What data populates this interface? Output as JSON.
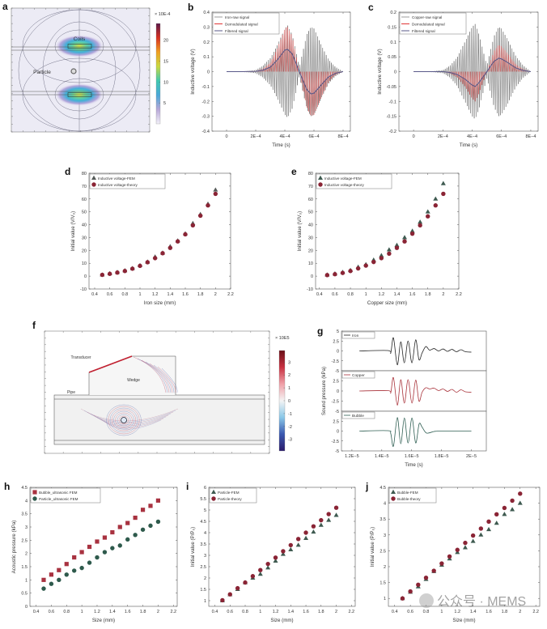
{
  "chart_data": [
    {
      "label": "a",
      "type": "heatmap",
      "colorbar": {
        "title": "× 10E-4",
        "ticks": [
          5,
          10,
          15,
          20
        ],
        "ticklabels": [
          "5",
          "10",
          "15",
          "20"
        ],
        "range": [
          0,
          24
        ],
        "colors": [
          "#f2f0f8",
          "#b8a8d8",
          "#4aa8d8",
          "#40c8b0",
          "#c8d840",
          "#f0a020",
          "#d83020",
          "#5a1848"
        ]
      },
      "annotations": [
        "Coils",
        "Particle"
      ]
    },
    {
      "label": "b",
      "type": "line",
      "xlabel": "Time (s)",
      "ylabel": "Inductive voltage (V)",
      "xlim": [
        -0.0001,
        0.00085
      ],
      "ylim": [
        -0.4,
        0.4
      ],
      "xticks": [
        0,
        0.0002,
        0.0004,
        0.0006,
        0.0008
      ],
      "xticklabels": [
        "0",
        "2E−4",
        "4E−4",
        "6E−4",
        "8E−4"
      ],
      "yticks": [
        -0.4,
        -0.3,
        -0.2,
        -0.1,
        0,
        0.1,
        0.2,
        0.3,
        0.4
      ],
      "yticklabels": [
        "-0.4",
        "-0.3",
        "-0.2",
        "-0.1",
        "0",
        "0.1",
        "0.2",
        "0.3",
        "0.4"
      ],
      "legend": [
        "Iron-raw signal",
        "Demodulated signal",
        "Filtered signal"
      ],
      "colors": {
        "raw": "#3a3a3a",
        "demodulated": "#e03535",
        "filtered": "#5a5a8a"
      },
      "t": [
        0,
        0.0001,
        0.0002,
        0.00025,
        0.0003,
        0.00035,
        0.0004,
        0.00042,
        0.00045,
        0.0005,
        0.00055,
        0.00058,
        0.0006,
        0.00065,
        0.0007,
        0.00075,
        0.0008
      ],
      "raw_envelope": [
        0,
        0,
        0.01,
        0.04,
        0.09,
        0.18,
        0.29,
        0.31,
        0.25,
        0.03,
        0.25,
        0.3,
        0.29,
        0.18,
        0.08,
        0.03,
        0
      ],
      "filtered": [
        0,
        0,
        0.002,
        0.01,
        0.03,
        0.08,
        0.145,
        0.15,
        0.12,
        0,
        -0.12,
        -0.15,
        -0.145,
        -0.09,
        -0.035,
        -0.01,
        0
      ]
    },
    {
      "label": "c",
      "type": "line",
      "xlabel": "Time (s)",
      "ylabel": "Inductive voltage (V)",
      "xlim": [
        -0.0001,
        0.00085
      ],
      "ylim": [
        -0.2,
        0.2
      ],
      "xticks": [
        0,
        0.0002,
        0.0004,
        0.0006,
        0.0008
      ],
      "xticklabels": [
        "0",
        "2E−4",
        "4E−4",
        "6E−4",
        "8E−4"
      ],
      "yticks": [
        -0.2,
        -0.15,
        -0.1,
        -0.05,
        0,
        0.05,
        0.1,
        0.15,
        0.2
      ],
      "yticklabels": [
        "-0.2",
        "-0.15",
        "-0.1",
        "-0.05",
        "0",
        "0.05",
        "0.1",
        "0.15",
        "0.2"
      ],
      "legend": [
        "Copper-raw signal",
        "Demodulated signal",
        "Filtered signal"
      ],
      "colors": {
        "raw": "#3a3a3a",
        "demodulated": "#e03535",
        "filtered": "#5a5a8a"
      },
      "t": [
        0,
        0.0001,
        0.0002,
        0.00025,
        0.0003,
        0.00035,
        0.0004,
        0.00042,
        0.00045,
        0.0005,
        0.00055,
        0.00058,
        0.0006,
        0.00065,
        0.0007,
        0.00075,
        0.0008
      ],
      "raw_envelope": [
        0,
        0,
        0.005,
        0.02,
        0.05,
        0.1,
        0.15,
        0.16,
        0.12,
        0.02,
        0.12,
        0.15,
        0.145,
        0.1,
        0.05,
        0.02,
        0
      ],
      "filtered": [
        0,
        0,
        0,
        -0.003,
        -0.01,
        -0.025,
        -0.045,
        -0.05,
        -0.035,
        0,
        0.035,
        0.045,
        0.043,
        0.028,
        0.012,
        0.004,
        0
      ]
    },
    {
      "label": "d",
      "type": "scatter",
      "xlabel": "Iron size (mm)",
      "ylabel": "Initial value (V/V₀)",
      "xlim": [
        0.325,
        2.2
      ],
      "ylim": [
        -10,
        80
      ],
      "xticks": [
        0.4,
        0.6,
        0.8,
        1,
        1.2,
        1.4,
        1.6,
        1.8,
        2,
        2.2
      ],
      "xticklabels": [
        "0.4",
        "0.6",
        "0.8",
        "1",
        "1.2",
        "1.4",
        "1.6",
        "1.8",
        "2",
        "2.2"
      ],
      "yticks": [
        -10,
        0,
        10,
        20,
        30,
        40,
        50,
        60,
        70,
        80
      ],
      "yticklabels": [
        "-10",
        "0",
        "10",
        "20",
        "30",
        "40",
        "50",
        "60",
        "70",
        "80"
      ],
      "x": [
        0.5,
        0.6,
        0.7,
        0.8,
        0.9,
        1.0,
        1.1,
        1.2,
        1.3,
        1.4,
        1.5,
        1.6,
        1.7,
        1.8,
        1.9,
        2.0
      ],
      "series": [
        {
          "name": "Inductive voltage-FEM",
          "marker": "triangle",
          "color": "#555a58",
          "values": [
            1,
            2,
            3,
            4.3,
            6,
            8.3,
            11,
            15,
            18,
            23,
            27.5,
            33,
            41,
            48,
            56,
            67
          ]
        },
        {
          "name": "Inductive voltage-theory",
          "marker": "circle",
          "color": "#8a2435",
          "values": [
            1,
            1.8,
            2.8,
            4,
            5.8,
            8,
            10.8,
            14,
            17.8,
            22,
            27,
            32.5,
            39.5,
            47,
            55,
            64
          ]
        }
      ],
      "legend_position": "top-left"
    },
    {
      "label": "e",
      "type": "scatter",
      "xlabel": "Copper size (mm)",
      "ylabel": "Initial value (V/V₀)",
      "xlim": [
        0.35,
        2.2
      ],
      "ylim": [
        -10,
        80
      ],
      "xticks": [
        0.4,
        0.6,
        0.8,
        1,
        1.2,
        1.4,
        1.6,
        1.8,
        2,
        2.2
      ],
      "xticklabels": [
        "0.4",
        "0.6",
        "0.8",
        "1",
        "1.2",
        "1.4",
        "1.6",
        "1.8",
        "2",
        "2.2"
      ],
      "yticks": [
        -10,
        0,
        10,
        20,
        30,
        40,
        50,
        60,
        70,
        80
      ],
      "yticklabels": [
        "-10",
        "0",
        "10",
        "20",
        "30",
        "40",
        "50",
        "60",
        "70",
        "80"
      ],
      "x": [
        0.5,
        0.6,
        0.7,
        0.8,
        0.9,
        1.0,
        1.1,
        1.2,
        1.3,
        1.4,
        1.5,
        1.6,
        1.7,
        1.8,
        1.9,
        2.0
      ],
      "series": [
        {
          "name": "Inductive voltage-FEM",
          "marker": "triangle",
          "color": "#3e5a50",
          "values": [
            1,
            1.8,
            3,
            4.5,
            7,
            9,
            12.5,
            16,
            20.5,
            24,
            30,
            35,
            42,
            50,
            60,
            72
          ]
        },
        {
          "name": "Inductive voltage-theory",
          "marker": "circle",
          "color": "#8a2435",
          "values": [
            0.8,
            1.5,
            2.5,
            4,
            6,
            8.2,
            11,
            14,
            17.5,
            22,
            27,
            33,
            39.5,
            46.5,
            55,
            64
          ]
        }
      ],
      "legend_position": "top-left"
    },
    {
      "label": "f",
      "type": "heatmap",
      "colorbar": {
        "title": "× 10E5",
        "ticks": [
          3,
          2,
          1,
          0,
          -1,
          -2,
          -3
        ],
        "ticklabels": [
          "3",
          "2",
          "1",
          "0",
          "-1",
          "-2",
          "-3"
        ],
        "range": [
          -3.9,
          3.9
        ],
        "colors": [
          "#2a1a6a",
          "#3a58b0",
          "#8ac8e8",
          "#f4f4f4",
          "#f0a0a8",
          "#c83040",
          "#6a1018"
        ]
      },
      "annotations": [
        "Transducer",
        "Wedge",
        "Pipe"
      ]
    },
    {
      "label": "g",
      "type": "line",
      "xlabel": "Time (s)",
      "ylabel": "Sound pressure (kPa)",
      "xlim": [
        1.13e-05,
        2.1e-05
      ],
      "ylim": [
        -5,
        5
      ],
      "xticks": [
        1.2e-05,
        1.4e-05,
        1.6e-05,
        1.8e-05,
        2e-05
      ],
      "xticklabels": [
        "1.2E−5",
        "1.4E−5",
        "1.6E−5",
        "1.8E−5",
        "2E−5"
      ],
      "yticklabels_top": [
        "5",
        "2.5",
        "0",
        "-2.5",
        "-5"
      ],
      "yticklabels_lower": [
        "2.5",
        "0",
        "-2.5",
        "-5"
      ],
      "yticks_top": [
        5,
        2.5,
        0,
        -2.5,
        -5
      ],
      "yticks_lower": [
        2.5,
        0,
        -2.5,
        -5
      ],
      "series": [
        {
          "name": "Iron",
          "color": "#222222",
          "x": [
            1.25e-05,
            1.44e-05,
            1.46e-05,
            1.478e-05,
            1.504e-05,
            1.527e-05,
            1.551e-05,
            1.576e-05,
            1.602e-05,
            1.627e-05,
            1.649e-05,
            1.67e-05,
            1.695e-05,
            1.72e-05,
            1.75e-05,
            1.78e-05,
            1.81e-05,
            1.84e-05,
            1.87e-05,
            1.9e-05,
            1.93e-05,
            1.96e-05,
            2e-05
          ],
          "y": [
            0,
            0.1,
            -0.5,
            3.3,
            -3.5,
            2.3,
            -3,
            2.5,
            -3,
            2.8,
            -2.2,
            -0.5,
            1.1,
            0.2,
            0.6,
            0,
            0.5,
            -0.1,
            0.4,
            -0.2,
            0.3,
            -0.2,
            -0.3
          ]
        },
        {
          "name": "Copper",
          "color": "#a83038",
          "x": [
            1.25e-05,
            1.44e-05,
            1.46e-05,
            1.478e-05,
            1.504e-05,
            1.527e-05,
            1.551e-05,
            1.576e-05,
            1.602e-05,
            1.627e-05,
            1.649e-05,
            1.67e-05,
            1.695e-05,
            1.72e-05,
            1.75e-05,
            1.78e-05,
            1.81e-05,
            1.84e-05,
            1.87e-05,
            1.9e-05,
            1.93e-05,
            1.96e-05,
            2e-05
          ],
          "y": [
            0,
            0.1,
            -0.4,
            3.3,
            -3.5,
            2.8,
            -3,
            2.8,
            -3,
            2.7,
            -2.5,
            -0.3,
            0.8,
            0.5,
            0.7,
            0.1,
            0.5,
            -0.1,
            0.4,
            -0.3,
            0.3,
            -0.2,
            -0.3
          ]
        },
        {
          "name": "Bubble",
          "color": "#2e5e52",
          "x": [
            1.25e-05,
            1.44e-05,
            1.46e-05,
            1.478e-05,
            1.504e-05,
            1.527e-05,
            1.551e-05,
            1.576e-05,
            1.602e-05,
            1.627e-05,
            1.65e-05,
            1.67e-05,
            1.7e-05,
            1.75e-05,
            1.8e-05,
            2e-05
          ],
          "y": [
            0,
            0.1,
            -0.6,
            -3.8,
            3.4,
            -3.2,
            3.3,
            -3.0,
            3.3,
            -3.0,
            1.8,
            1.0,
            -0.5,
            -0.1,
            0,
            0
          ]
        }
      ]
    },
    {
      "label": "h",
      "type": "scatter",
      "xlabel": "Size (mm)",
      "ylabel": "Acoustic pressure (kPa)",
      "xlim": [
        0.32,
        2.25
      ],
      "ylim": [
        0,
        4.5
      ],
      "xticks": [
        0.4,
        0.6,
        0.8,
        1,
        1.2,
        1.4,
        1.6,
        1.8,
        2,
        2.2
      ],
      "xticklabels": [
        "0.4",
        "0.6",
        "0.8",
        "1",
        "1.2",
        "1.4",
        "1.6",
        "1.8",
        "2",
        "2.2"
      ],
      "yticks": [
        0,
        0.5,
        1,
        1.5,
        2,
        2.5,
        3,
        3.5,
        4,
        4.5
      ],
      "yticklabels": [
        "0",
        "0.5",
        "1",
        "1.5",
        "2",
        "2.5",
        "3",
        "3.5",
        "4",
        "4.5"
      ],
      "x": [
        0.5,
        0.6,
        0.7,
        0.8,
        0.9,
        1.0,
        1.1,
        1.2,
        1.3,
        1.4,
        1.5,
        1.6,
        1.7,
        1.8,
        1.9,
        2.0
      ],
      "series": [
        {
          "name": "Bubble_ultrasonic FEM",
          "marker": "square",
          "color": "#a83240",
          "values": [
            1.0,
            1.2,
            1.37,
            1.6,
            1.85,
            2.05,
            2.25,
            2.45,
            2.6,
            2.8,
            3.0,
            3.15,
            3.35,
            3.65,
            3.8,
            4.0
          ]
        },
        {
          "name": "Particle_ultrasonic FEM",
          "marker": "circle",
          "color": "#2e5a4c",
          "values": [
            0.67,
            0.85,
            1.0,
            1.2,
            1.35,
            1.45,
            1.65,
            1.85,
            2.05,
            2.2,
            2.3,
            2.53,
            2.7,
            2.9,
            3.05,
            3.2
          ]
        }
      ],
      "legend_position": "top-left"
    },
    {
      "label": "i",
      "type": "scatter",
      "xlabel": "Size (mm)",
      "ylabel": "Initial value (P/P₀)",
      "xlim": [
        0.32,
        2.25
      ],
      "ylim": [
        0.75,
        6
      ],
      "xticks": [
        0.4,
        0.6,
        0.8,
        1,
        1.2,
        1.4,
        1.6,
        1.8,
        2,
        2.2
      ],
      "xticklabels": [
        "0.4",
        "0.6",
        "0.8",
        "1",
        "1.2",
        "1.4",
        "1.6",
        "1.8",
        "2",
        "2.2"
      ],
      "yticks": [
        1,
        1.5,
        2,
        2.5,
        3,
        3.5,
        4,
        4.5,
        5,
        5.5,
        6
      ],
      "yticklabels": [
        "1",
        "1.5",
        "2",
        "2.5",
        "3",
        "3.5",
        "4",
        "4.5",
        "5",
        "5.5",
        "6"
      ],
      "x": [
        0.5,
        0.6,
        0.7,
        0.8,
        0.9,
        1.0,
        1.1,
        1.2,
        1.3,
        1.4,
        1.5,
        1.6,
        1.7,
        1.8,
        1.9,
        2.0
      ],
      "series": [
        {
          "name": "Particle-FEM",
          "marker": "triangle",
          "color": "#3e5a50",
          "values": [
            1.0,
            1.27,
            1.5,
            1.8,
            2.0,
            2.17,
            2.45,
            2.75,
            3.05,
            3.25,
            3.45,
            3.75,
            4.03,
            4.33,
            4.55,
            4.77
          ]
        },
        {
          "name": "Particle-theory",
          "marker": "circle",
          "color": "#8a2435",
          "values": [
            1.02,
            1.28,
            1.55,
            1.8,
            2.08,
            2.35,
            2.62,
            2.9,
            3.18,
            3.45,
            3.72,
            4.0,
            4.28,
            4.55,
            4.82,
            5.1
          ]
        }
      ],
      "legend_position": "top-left"
    },
    {
      "label": "j",
      "type": "scatter",
      "xlabel": "Size (mm)",
      "ylabel": "Initial value (P/P₀)",
      "xlim": [
        0.32,
        2.25
      ],
      "ylim": [
        0.75,
        4.5
      ],
      "xticks": [
        0.4,
        0.6,
        0.8,
        1,
        1.2,
        1.4,
        1.6,
        1.8,
        2,
        2.2
      ],
      "xticklabels": [
        "0.4",
        "0.6",
        "0.8",
        "1",
        "1.2",
        "1.4",
        "1.6",
        "1.8",
        "2",
        "2.2"
      ],
      "yticks": [
        1,
        1.5,
        2,
        2.5,
        3,
        3.5,
        4,
        4.5
      ],
      "yticklabels": [
        "1",
        "1.5",
        "2",
        "2.5",
        "3",
        "3.5",
        "4",
        "4.5"
      ],
      "x": [
        0.5,
        0.6,
        0.7,
        0.8,
        0.9,
        1.0,
        1.1,
        1.2,
        1.3,
        1.4,
        1.5,
        1.6,
        1.7,
        1.8,
        1.9,
        2.0
      ],
      "series": [
        {
          "name": "Bubble-FEM",
          "marker": "triangle",
          "color": "#3e5a50",
          "values": [
            1.0,
            1.2,
            1.37,
            1.6,
            1.85,
            2.05,
            2.25,
            2.45,
            2.6,
            2.8,
            3.0,
            3.17,
            3.37,
            3.65,
            3.8,
            4.0
          ]
        },
        {
          "name": "Bubble-theory",
          "marker": "circle",
          "color": "#8a2435",
          "values": [
            1.0,
            1.22,
            1.43,
            1.65,
            1.87,
            2.1,
            2.32,
            2.53,
            2.75,
            2.98,
            3.2,
            3.42,
            3.65,
            3.85,
            4.08,
            4.3
          ]
        }
      ],
      "legend_position": "top-left"
    }
  ],
  "watermark": "公众号 · MEMS"
}
